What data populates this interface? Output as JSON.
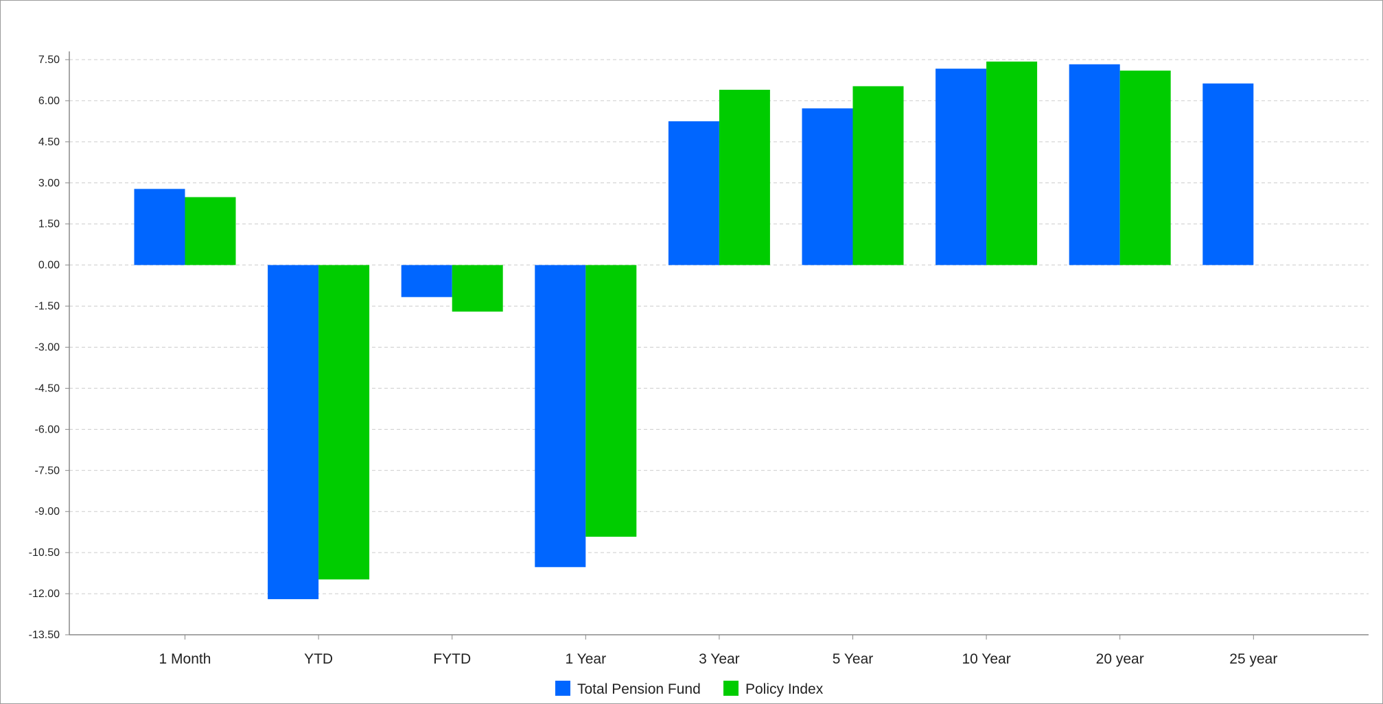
{
  "chart_data": {
    "type": "bar",
    "title": "",
    "xlabel": "",
    "ylabel": "",
    "categories": [
      "1 Month",
      "YTD",
      "FYTD",
      "1 Year",
      "3 Year",
      "5 Year",
      "10 Year",
      "20 year",
      "25 year"
    ],
    "series": [
      {
        "name": "Total Pension Fund",
        "color": "#0066ff",
        "values": [
          2.78,
          -12.2,
          -1.17,
          -11.03,
          5.25,
          5.72,
          7.17,
          7.33,
          6.63
        ]
      },
      {
        "name": "Policy Index",
        "color": "#00cc00",
        "values": [
          2.48,
          -11.48,
          -1.7,
          -9.92,
          6.4,
          6.53,
          7.43,
          7.1,
          null
        ]
      }
    ],
    "ylim": [
      -13.5,
      7.5
    ],
    "yticks": [
      "7.50",
      "6.00",
      "4.50",
      "3.00",
      "1.50",
      "0.00",
      "-1.50",
      "-3.00",
      "-4.50",
      "-6.00",
      "-7.50",
      "-9.00",
      "-10.50",
      "-12.00",
      "-13.50"
    ],
    "grid": true,
    "legend": "bottom-center"
  }
}
